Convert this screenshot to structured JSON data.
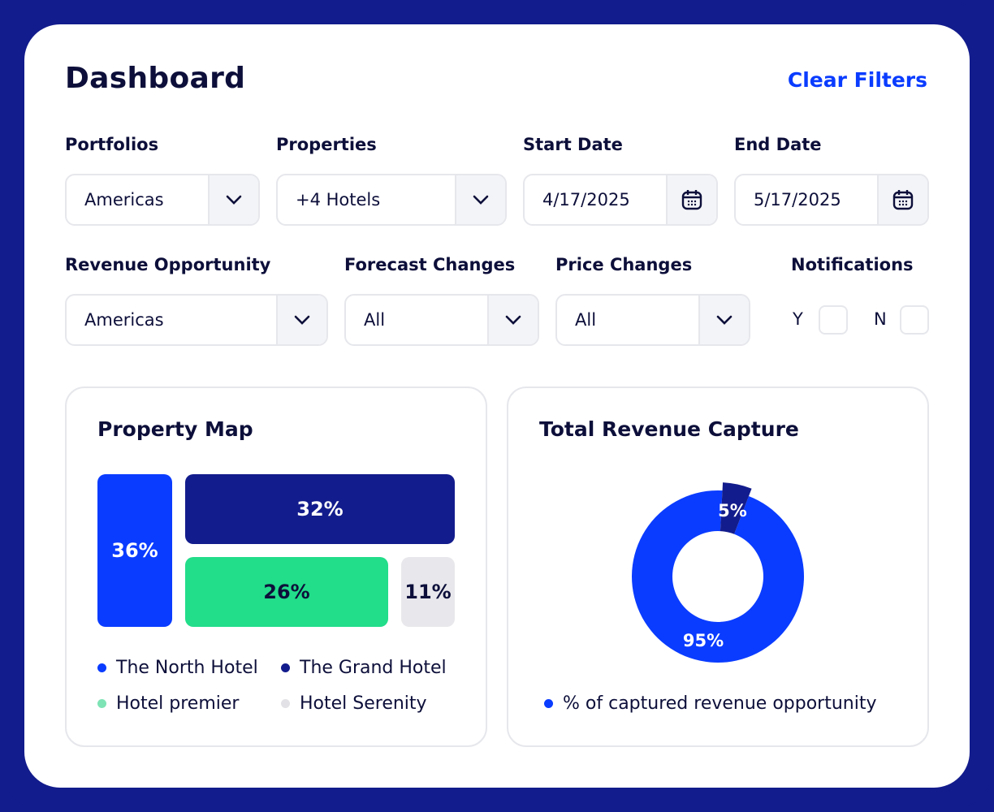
{
  "header": {
    "title": "Dashboard",
    "clear_filters": "Clear Filters"
  },
  "filters": {
    "portfolios": {
      "label": "Portfolios",
      "value": "Americas"
    },
    "properties": {
      "label": "Properties",
      "value": "+4 Hotels"
    },
    "start_date": {
      "label": "Start Date",
      "value": "4/17/2025"
    },
    "end_date": {
      "label": "End Date",
      "value": "5/17/2025"
    },
    "revenue_opportunity": {
      "label": "Revenue Opportunity",
      "value": "Americas"
    },
    "forecast_changes": {
      "label": "Forecast Changes",
      "value": "All"
    },
    "price_changes": {
      "label": "Price Changes",
      "value": "All"
    },
    "notifications": {
      "label": "Notifications",
      "yes": "Y",
      "no": "N",
      "yes_checked": false,
      "no_checked": false
    }
  },
  "colors": {
    "frame": "#131c8c",
    "accent": "#0a3cff",
    "navy": "#131c8c",
    "green": "#22dd8a",
    "grey": "#e8e8ec"
  },
  "chart_data": [
    {
      "type": "treemap",
      "title": "Property Map",
      "series": [
        {
          "name": "The North Hotel",
          "value": 36,
          "label": "36%",
          "color": "#0a3cff"
        },
        {
          "name": "The Grand Hotel",
          "value": 32,
          "label": "32%",
          "color": "#131c8c"
        },
        {
          "name": "Hotel premier",
          "value": 26,
          "label": "26%",
          "color": "#22dd8a"
        },
        {
          "name": "Hotel Serenity",
          "value": 11,
          "label": "11%",
          "color": "#e8e8ec"
        }
      ]
    },
    {
      "type": "pie",
      "title": "Total Revenue Capture",
      "series": [
        {
          "value": 95,
          "label": "95%",
          "color": "#0a3cff"
        },
        {
          "value": 5,
          "label": "5%",
          "color": "#131c8c"
        }
      ],
      "legend": "% of captured revenue opportunity"
    }
  ]
}
